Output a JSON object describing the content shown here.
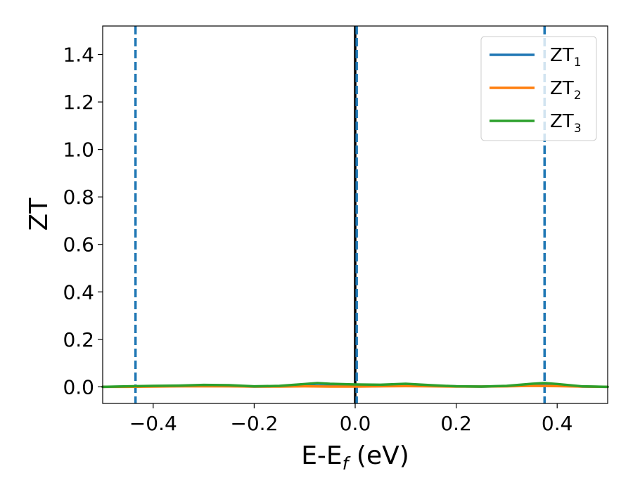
{
  "chart_data": {
    "type": "line",
    "xlabel": "E-E",
    "xlabel_sub": "f",
    "xlabel_unit": " (eV)",
    "ylabel": "ZT",
    "xlim": [
      -0.5,
      0.5
    ],
    "ylim": [
      -0.07,
      1.52
    ],
    "xticks": [
      -0.4,
      -0.2,
      0.0,
      0.2,
      0.4
    ],
    "xtick_labels": [
      "−0.4",
      "−0.2",
      "0.0",
      "0.2",
      "0.4"
    ],
    "yticks": [
      0.0,
      0.2,
      0.4,
      0.6,
      0.8,
      1.0,
      1.2,
      1.4
    ],
    "ytick_labels": [
      "0.0",
      "0.2",
      "0.4",
      "0.6",
      "0.8",
      "1.0",
      "1.2",
      "1.4"
    ],
    "grid": false,
    "legend_position": "top-right",
    "vlines": [
      {
        "x": -0.435,
        "style": "dashed",
        "color": "#1f77b4"
      },
      {
        "x": 0.0,
        "style": "solid",
        "color": "#000000"
      },
      {
        "x": 0.003,
        "style": "dashed",
        "color": "#1f77b4"
      },
      {
        "x": 0.375,
        "style": "dashed",
        "color": "#1f77b4"
      }
    ],
    "series": [
      {
        "name": "ZT",
        "name_sub": "1",
        "color": "#1f77b4",
        "x": [
          -0.5,
          -0.45,
          -0.4,
          -0.35,
          -0.3,
          -0.25,
          -0.2,
          -0.15,
          -0.1,
          -0.05,
          0.0,
          0.05,
          0.1,
          0.15,
          0.2,
          0.25,
          0.3,
          0.35,
          0.4,
          0.45,
          0.5
        ],
        "y": [
          0.0,
          0.001,
          0.002,
          0.003,
          0.004,
          0.003,
          0.001,
          0.002,
          0.005,
          0.004,
          0.002,
          0.003,
          0.006,
          0.004,
          0.002,
          0.001,
          0.003,
          0.007,
          0.005,
          0.001,
          0.0
        ]
      },
      {
        "name": "ZT",
        "name_sub": "2",
        "color": "#ff7f0e",
        "x": [
          -0.5,
          -0.45,
          -0.4,
          -0.35,
          -0.3,
          -0.25,
          -0.2,
          -0.15,
          -0.1,
          -0.05,
          0.0,
          0.05,
          0.1,
          0.15,
          0.2,
          0.25,
          0.3,
          0.35,
          0.4,
          0.45,
          0.5
        ],
        "y": [
          0.0,
          0.0,
          0.001,
          0.002,
          0.002,
          0.002,
          0.001,
          0.001,
          0.002,
          0.001,
          0.001,
          0.002,
          0.003,
          0.002,
          0.001,
          0.001,
          0.002,
          0.004,
          0.003,
          0.001,
          0.0
        ]
      },
      {
        "name": "ZT",
        "name_sub": "3",
        "color": "#2ca02c",
        "x": [
          -0.5,
          -0.45,
          -0.4,
          -0.35,
          -0.3,
          -0.25,
          -0.2,
          -0.15,
          -0.1,
          -0.075,
          -0.05,
          0.0,
          0.05,
          0.1,
          0.15,
          0.2,
          0.25,
          0.3,
          0.35,
          0.375,
          0.4,
          0.45,
          0.5
        ],
        "y": [
          0.0,
          0.002,
          0.004,
          0.005,
          0.008,
          0.007,
          0.002,
          0.004,
          0.012,
          0.016,
          0.013,
          0.01,
          0.009,
          0.013,
          0.007,
          0.002,
          0.001,
          0.004,
          0.013,
          0.016,
          0.012,
          0.002,
          0.0
        ]
      }
    ]
  }
}
